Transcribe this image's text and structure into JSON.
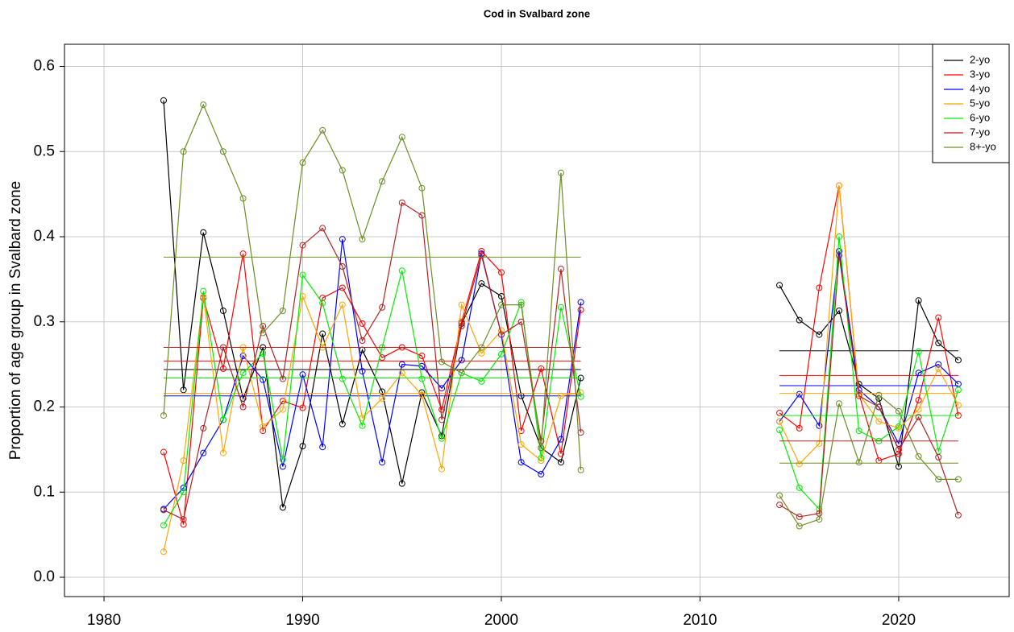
{
  "chart_data": {
    "type": "line",
    "title": "Cod in Svalbard zone",
    "y_label": "Proportion of age group in Svalbard zone",
    "x": [
      1983,
      1984,
      1985,
      1986,
      1987,
      1988,
      1989,
      1990,
      1991,
      1992,
      1993,
      1994,
      1995,
      1996,
      1997,
      1998,
      1999,
      2000,
      2001,
      2002,
      2003,
      2004,
      2005,
      2006,
      2007,
      2008,
      2009,
      2010,
      2011,
      2012,
      2013,
      2014,
      2015,
      2016,
      2017,
      2018,
      2019,
      2020,
      2021,
      2022,
      2023
    ],
    "periods": [
      [
        1983,
        2004
      ],
      [
        2014,
        2023
      ]
    ],
    "series": [
      {
        "name": "2-yo",
        "color": "#000000",
        "means": [
          0.244,
          0.266
        ],
        "values": [
          0.56,
          0.22,
          0.405,
          0.313,
          0.21,
          0.27,
          0.082,
          0.154,
          0.286,
          0.18,
          0.267,
          0.218,
          0.11,
          0.217,
          0.166,
          0.298,
          0.345,
          0.33,
          0.213,
          0.152,
          0.135,
          0.234,
          null,
          null,
          null,
          null,
          null,
          null,
          null,
          null,
          null,
          0.343,
          0.302,
          0.285,
          0.313,
          0.227,
          0.21,
          0.13,
          0.325,
          0.275,
          0.255
        ]
      },
      {
        "name": "3-yo",
        "color": "#ff0000",
        "means": [
          0.254,
          0.237
        ],
        "values": [
          0.147,
          0.062,
          0.328,
          0.245,
          0.38,
          0.172,
          0.207,
          0.199,
          0.328,
          0.34,
          0.298,
          0.258,
          0.27,
          0.26,
          0.197,
          0.3,
          0.383,
          0.358,
          0.172,
          0.245,
          0.145,
          0.314,
          null,
          null,
          null,
          null,
          null,
          null,
          null,
          null,
          null,
          0.193,
          0.175,
          0.34,
          0.46,
          0.215,
          0.137,
          0.145,
          0.208,
          0.305,
          0.19
        ]
      },
      {
        "name": "4-yo",
        "color": "#0000ff",
        "means": [
          0.213,
          0.225
        ],
        "values": [
          0.08,
          0.105,
          0.146,
          0.185,
          0.26,
          0.232,
          0.13,
          0.238,
          0.153,
          0.397,
          0.242,
          0.135,
          0.25,
          0.248,
          0.222,
          0.255,
          0.38,
          0.285,
          0.135,
          0.121,
          0.162,
          0.323,
          null,
          null,
          null,
          null,
          null,
          null,
          null,
          null,
          null,
          0.183,
          0.215,
          0.178,
          0.383,
          0.22,
          0.2,
          0.157,
          0.24,
          0.25,
          0.227
        ]
      },
      {
        "name": "5-yo",
        "color": "#ffa500",
        "means": [
          0.216,
          0.216
        ],
        "values": [
          0.03,
          0.137,
          0.33,
          0.146,
          0.27,
          0.177,
          0.197,
          0.33,
          0.27,
          0.32,
          0.187,
          0.21,
          0.24,
          0.214,
          0.127,
          0.32,
          0.263,
          0.29,
          0.156,
          0.137,
          0.213,
          0.217,
          null,
          null,
          null,
          null,
          null,
          null,
          null,
          null,
          null,
          0.183,
          0.133,
          0.157,
          0.46,
          0.215,
          0.183,
          0.175,
          0.197,
          0.245,
          0.202
        ]
      },
      {
        "name": "6-yo",
        "color": "#00ee00",
        "means": [
          0.234,
          0.19
        ],
        "values": [
          0.061,
          0.1,
          0.336,
          0.185,
          0.24,
          0.263,
          0.138,
          0.355,
          0.322,
          0.233,
          0.178,
          0.27,
          0.36,
          0.233,
          0.163,
          0.24,
          0.23,
          0.262,
          0.323,
          0.14,
          0.317,
          0.212,
          null,
          null,
          null,
          null,
          null,
          null,
          null,
          null,
          null,
          0.173,
          0.105,
          0.08,
          0.4,
          0.172,
          0.16,
          0.177,
          0.265,
          0.148,
          0.22
        ]
      },
      {
        "name": "7-yo",
        "color": "#b22222",
        "means": [
          0.27,
          0.16
        ],
        "values": [
          0.079,
          0.068,
          0.175,
          0.27,
          0.2,
          0.295,
          0.233,
          0.39,
          0.41,
          0.365,
          0.278,
          0.317,
          0.44,
          0.425,
          0.185,
          0.295,
          0.378,
          0.285,
          0.3,
          0.16,
          0.362,
          0.17,
          null,
          null,
          null,
          null,
          null,
          null,
          null,
          null,
          null,
          0.085,
          0.071,
          0.075,
          0.378,
          0.213,
          0.2,
          0.15,
          0.188,
          0.141,
          0.073
        ]
      },
      {
        "name": "8+-yo",
        "color": "#6b8e23",
        "means": [
          0.376,
          0.134
        ],
        "values": [
          0.19,
          0.5,
          0.555,
          0.5,
          0.445,
          0.287,
          0.313,
          0.487,
          0.525,
          0.478,
          0.397,
          0.465,
          0.517,
          0.457,
          0.253,
          0.24,
          0.27,
          0.32,
          0.32,
          0.152,
          0.475,
          0.126,
          null,
          null,
          null,
          null,
          null,
          null,
          null,
          null,
          null,
          0.096,
          0.06,
          0.068,
          0.204,
          0.135,
          0.214,
          0.195,
          0.142,
          0.115,
          0.115
        ]
      }
    ],
    "xlim": [
      1978.01,
      2025.56
    ],
    "ylim": [
      -0.0227,
      0.626
    ],
    "xticks": [
      1980,
      1990,
      2000,
      2010,
      2020
    ],
    "yticks": [
      {
        "value": 0,
        "label": "0.0"
      },
      0.1,
      0.2,
      0.3,
      0.4,
      0.5,
      0.6
    ],
    "grid": true,
    "legend_position": "top-right"
  }
}
